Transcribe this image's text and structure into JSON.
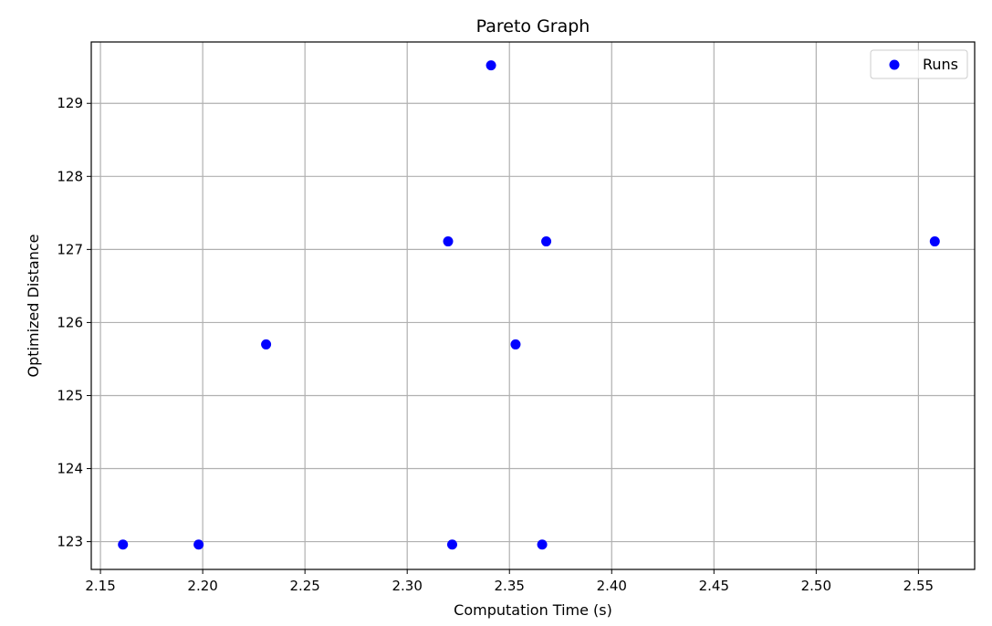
{
  "chart_data": {
    "type": "scatter",
    "title": "Pareto Graph",
    "xlabel": "Computation Time (s)",
    "ylabel": "Optimized Distance",
    "xlim": [
      2.1455,
      2.5775
    ],
    "ylim": [
      122.62,
      129.84
    ],
    "xticks": [
      "2.15",
      "2.20",
      "2.25",
      "2.30",
      "2.35",
      "2.40",
      "2.45",
      "2.50",
      "2.55"
    ],
    "xtick_values": [
      2.15,
      2.2,
      2.25,
      2.3,
      2.35,
      2.4,
      2.45,
      2.5,
      2.55
    ],
    "yticks": [
      "123",
      "124",
      "125",
      "126",
      "127",
      "128",
      "129"
    ],
    "ytick_values": [
      123,
      124,
      125,
      126,
      127,
      128,
      129
    ],
    "grid": true,
    "legend_position": "top-right",
    "series": [
      {
        "name": "Runs",
        "color": "#0000ff",
        "marker": "circle",
        "points": [
          {
            "x": 2.161,
            "y": 122.96
          },
          {
            "x": 2.198,
            "y": 122.96
          },
          {
            "x": 2.231,
            "y": 125.7
          },
          {
            "x": 2.32,
            "y": 127.11
          },
          {
            "x": 2.322,
            "y": 122.96
          },
          {
            "x": 2.341,
            "y": 129.52
          },
          {
            "x": 2.353,
            "y": 125.7
          },
          {
            "x": 2.366,
            "y": 122.96
          },
          {
            "x": 2.368,
            "y": 127.11
          },
          {
            "x": 2.558,
            "y": 127.11
          }
        ]
      }
    ]
  }
}
